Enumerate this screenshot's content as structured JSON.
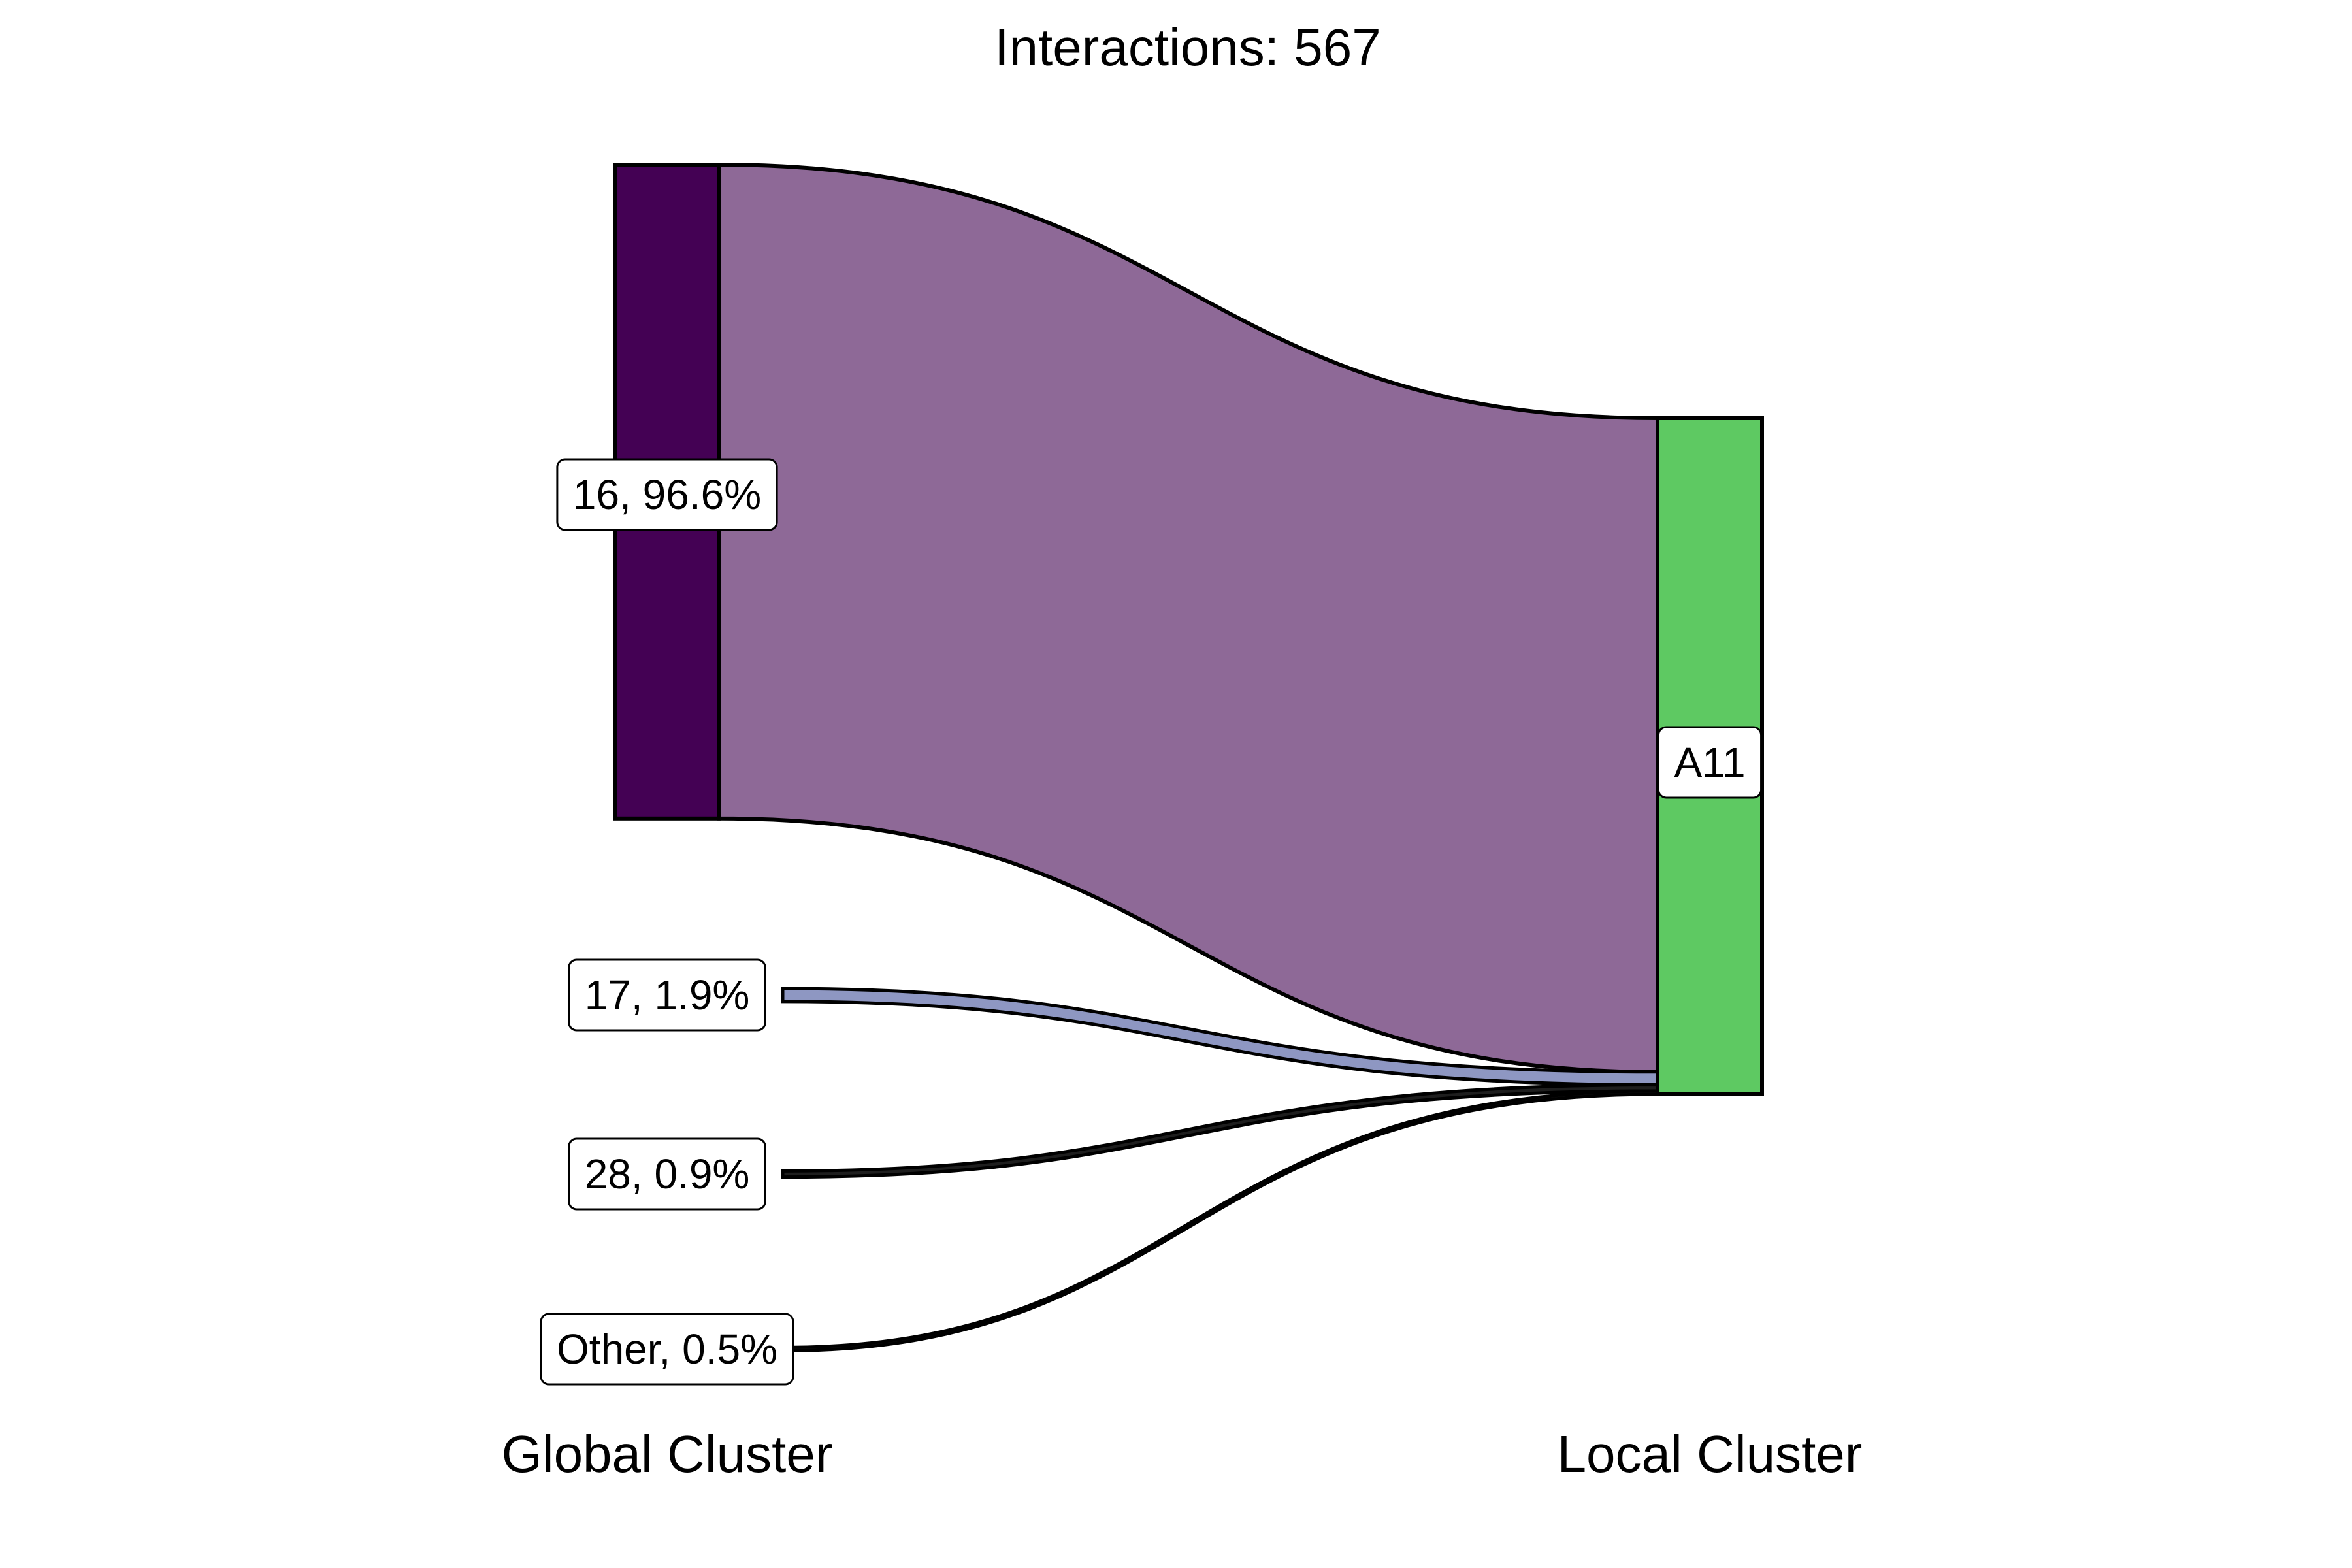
{
  "chart_data": {
    "type": "sankey",
    "title": "Interactions: 567",
    "xlabel_left": "Global Cluster",
    "xlabel_right": "Local Cluster",
    "sources": [
      {
        "label": "16, 96.6%",
        "value": 96.6,
        "fill": "#440154",
        "flow_color": "#8e6997"
      },
      {
        "label": "17, 1.9%",
        "value": 1.9,
        "fill": "#8e97c2",
        "flow_color": "#8e97c2"
      },
      {
        "label": "28, 0.9%",
        "value": 0.9,
        "fill": "#1e1e1e",
        "flow_color": "#1e1e1e"
      },
      {
        "label": "Other, 0.5%",
        "value": 0.5,
        "fill": "#1e1e1e",
        "flow_color": "#1e1e1e"
      }
    ],
    "target": {
      "label": "A11",
      "value": 100,
      "fill": "#5ec962"
    }
  }
}
